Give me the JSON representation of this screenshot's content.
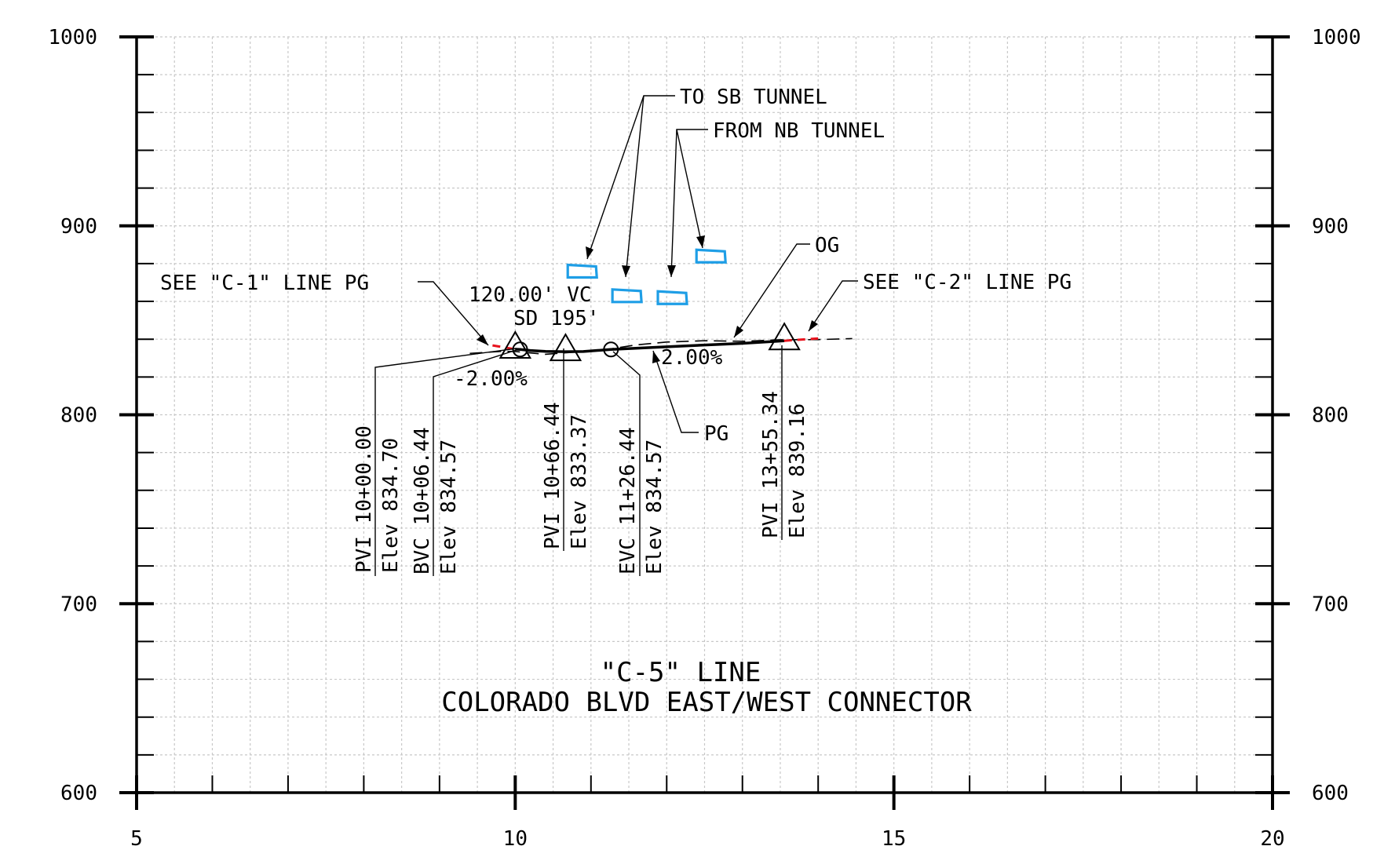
{
  "chart_data": {
    "type": "line",
    "xlim": [
      5,
      20
    ],
    "ylim": [
      600,
      1000
    ],
    "x_ticks": [
      "5",
      "10",
      "15",
      "20"
    ],
    "y_ticks": [
      "600",
      "700",
      "800",
      "900",
      "1000"
    ],
    "grid": true,
    "title_line1": "\"C-5\" LINE",
    "title_line2": "COLORADO BLVD EAST/WEST CONNECTOR",
    "series": [
      {
        "name": "PG",
        "style": "solid",
        "color": "#000000",
        "points": [
          [
            10.0,
            834.7
          ],
          [
            10.0644,
            834.57
          ],
          [
            10.2,
            834.0
          ],
          [
            10.4,
            833.55
          ],
          [
            10.6644,
            833.37
          ],
          [
            10.9,
            833.5
          ],
          [
            11.2644,
            834.57
          ],
          [
            12.0,
            836.0
          ],
          [
            13.0,
            837.8
          ],
          [
            13.5534,
            839.16
          ]
        ]
      },
      {
        "name": "OG",
        "style": "dashed",
        "color": "#000000",
        "points": [
          [
            9.4,
            832.5
          ],
          [
            9.8,
            833.5
          ],
          [
            10.0,
            833.5
          ],
          [
            10.4,
            832.0
          ],
          [
            10.8,
            833.2
          ],
          [
            11.2,
            834.5
          ],
          [
            11.6,
            837.0
          ],
          [
            12.0,
            838.5
          ],
          [
            12.5,
            839.2
          ],
          [
            13.0,
            838.9
          ],
          [
            13.5,
            839.7
          ],
          [
            14.0,
            839.8
          ],
          [
            14.45,
            840.3
          ]
        ]
      },
      {
        "name": "SEE C-1 LINE PG",
        "style": "dashed",
        "color": "#e8141e",
        "points": [
          [
            9.7,
            836.7
          ],
          [
            10.0,
            834.7
          ]
        ]
      },
      {
        "name": "SEE C-2 LINE PG",
        "style": "dashed",
        "color": "#e8141e",
        "points": [
          [
            13.55,
            839.16
          ],
          [
            14.0,
            840.4
          ]
        ]
      }
    ],
    "pvi_points": [
      [
        10.0,
        834.7
      ],
      [
        10.6644,
        833.37
      ],
      [
        13.5534,
        839.16
      ]
    ],
    "curve_points": [
      [
        10.0644,
        834.57
      ],
      [
        11.2644,
        834.57
      ]
    ],
    "tunnels": [
      {
        "label": "TO SB TUNNEL",
        "station": 10.88,
        "elev": 876
      },
      {
        "label": "TO SB TUNNEL",
        "station": 11.47,
        "elev": 863
      },
      {
        "label": "FROM NB TUNNEL",
        "station": 12.07,
        "elev": 862
      },
      {
        "label": "FROM NB TUNNEL",
        "station": 12.58,
        "elev": 884
      }
    ]
  },
  "labels": {
    "to_sb_tunnel": "TO SB TUNNEL",
    "from_nb_tunnel": "FROM NB TUNNEL",
    "og": "OG",
    "see_c1": "SEE \"C-1\" LINE PG",
    "see_c2": "SEE \"C-2\" LINE PG",
    "vc": "120.00' VC",
    "sd": "SD 195'",
    "grade_left": "-2.00%",
    "grade_right": "2.00%",
    "pg": "PG",
    "pvi1_sta": "PVI 10+00.00",
    "pvi1_elev": "Elev 834.70",
    "bvc_sta": "BVC 10+06.44",
    "bvc_elev": "Elev 834.57",
    "pvi2_sta": "PVI 10+66.44",
    "pvi2_elev": "Elev 833.37",
    "evc_sta": "EVC 11+26.44",
    "evc_elev": "Elev 834.57",
    "pvi3_sta": "PVI 13+55.34",
    "pvi3_elev": "Elev 839.16"
  }
}
